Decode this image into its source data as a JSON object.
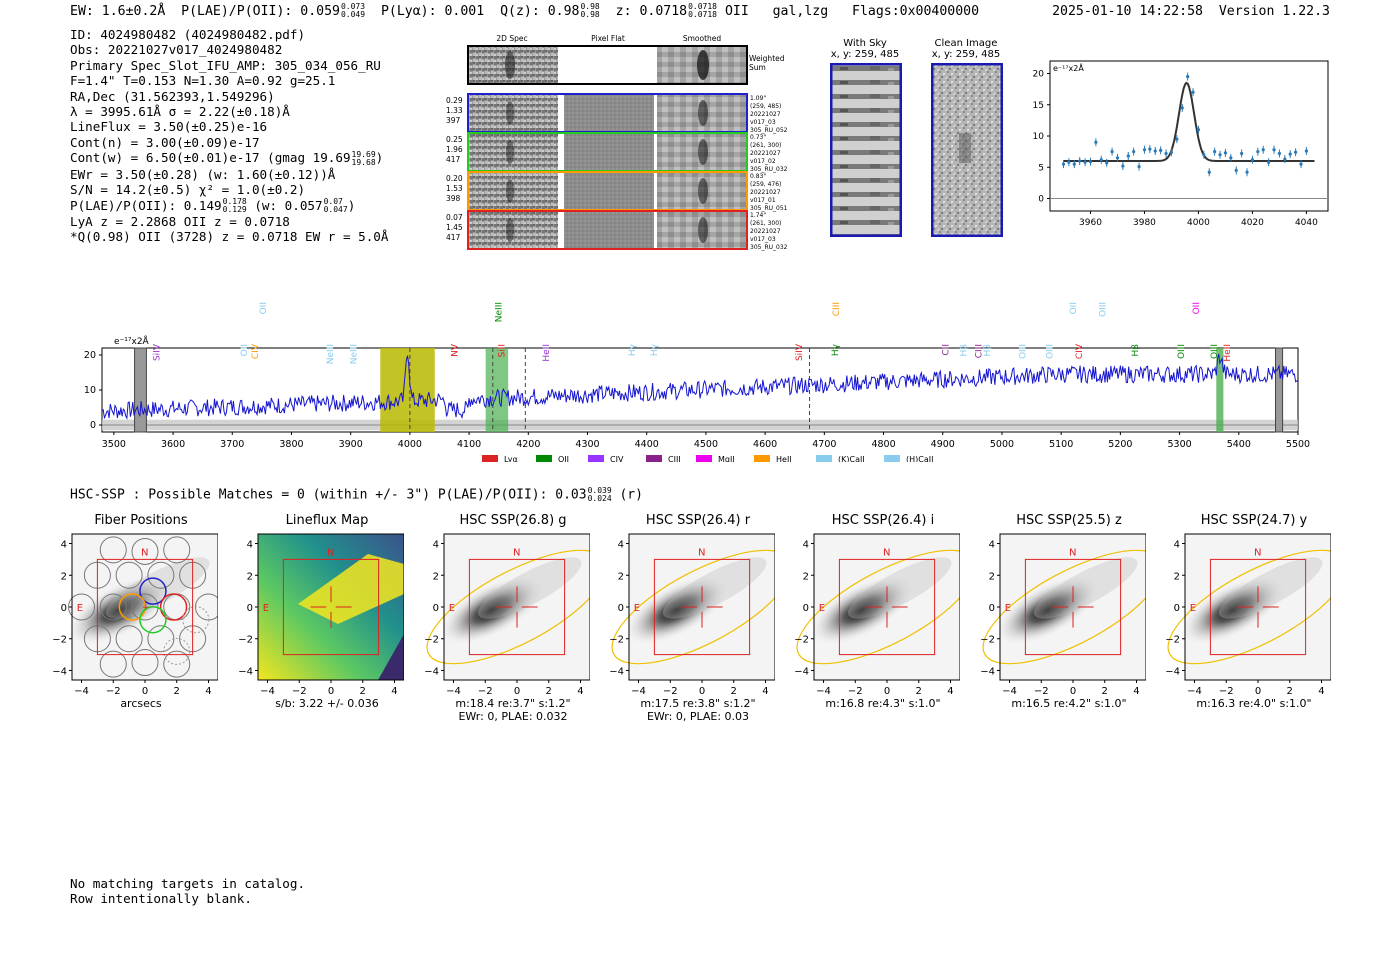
{
  "header": {
    "ew_label": "EW: 1.6±0.2Å",
    "plae_label": "P(LAE)/P(OII): 0.059",
    "plae_hi": "0.073",
    "plae_lo": "0.049",
    "plya": "P(Lyα): 0.001",
    "qz_label": "Q(z): 0.98",
    "qz_hi": "0.98",
    "qz_lo": "0.98",
    "z_label": "z: 0.0718",
    "z_hi": "0.0718",
    "z_lo": "0.0718",
    "z_tail": "OII",
    "classification": "gal,lzg",
    "flags": "Flags:0x00400000",
    "timestamp": "2025-01-10 14:22:58",
    "version": "Version 1.22.3"
  },
  "info": {
    "id": "ID: 4024980482 (4024980482.pdf)",
    "obs": "Obs: 20221027v017_4024980482",
    "primary": "Primary Spec_Slot_IFU_AMP: 305_034_056_RU",
    "params": "F=1.4\"  T=0.153  N=1.30  A=0.92  g=25.1",
    "radec": "RA,Dec (31.562393,1.549296)",
    "lambda": "λ = 3995.61Å  σ = 2.22(±0.18)Å",
    "lineflux": "LineFlux = 3.50(±0.25)e-16",
    "contn": "Cont(n) = 3.00(±0.09)e-17",
    "contw": "Cont(w) = 6.50(±0.01)e-17 (gmag 19.69",
    "gmag_hi": "19.69",
    "gmag_lo": "19.68",
    "ewr": "EWr = 3.50(±0.28) (w: 1.60(±0.12))Å",
    "sn": "S/N = 14.2(±0.5)  χ² = 1.0(±0.2)",
    "plae2": "P(LAE)/P(OII): 0.149",
    "plae2_hi": "0.178",
    "plae2_lo": "0.129",
    "plae2_w": "(w: 0.057",
    "plae2_w_hi": "0.07",
    "plae2_w_lo": "0.047",
    "lya": "LyA z = 2.2868  OII z = 0.0718",
    "qline": "*Q(0.98) OII (3728) z = 0.0718  EW r = 5.0Å"
  },
  "cutouts": {
    "headers": [
      "2D Spec",
      "Pixel Flat",
      "Smoothed"
    ],
    "weighted": [
      "Weighted",
      "Sum"
    ],
    "rows": [
      {
        "left": [
          "0.29",
          "1.33",
          "397"
        ],
        "right": [
          "1.09\"",
          "(259, 485)",
          "20221027",
          "v017_03",
          "305_RU_052"
        ],
        "color": "#2020cc"
      },
      {
        "left": [
          "0.25",
          "1.96",
          "417"
        ],
        "right": [
          "0.73\"",
          "(261, 300)",
          "20221027",
          "v017_02",
          "305_RU_032"
        ],
        "color": "#22cc22"
      },
      {
        "left": [
          "0.20",
          "1.53",
          "398"
        ],
        "right": [
          "0.83\"",
          "(259, 476)",
          "20221027",
          "v017_01",
          "305_RU_051"
        ],
        "color": "#ff9900"
      },
      {
        "left": [
          "0.07",
          "1.45",
          "417"
        ],
        "right": [
          "1.74\"",
          "(261, 300)",
          "20221027",
          "v017_03",
          "305_RU_032"
        ],
        "color": "#dd2222"
      }
    ]
  },
  "sky": {
    "with_sky": "With Sky",
    "with_sky_xy": "x, y: 259, 485",
    "clean": "Clean Image",
    "clean_xy": "x, y: 259, 485"
  },
  "fit": {
    "unit": "e⁻¹⁷x2Å",
    "xticks": [
      "3960",
      "3980",
      "4000",
      "4020",
      "4040"
    ],
    "yticks": [
      "0",
      "5",
      "10",
      "15",
      "20"
    ]
  },
  "spectrum": {
    "unit": "e⁻¹⁷x2Å",
    "xticks": [
      "3500",
      "3600",
      "3700",
      "3800",
      "3900",
      "4000",
      "4100",
      "4200",
      "4300",
      "4400",
      "4500",
      "4600",
      "4700",
      "4800",
      "4900",
      "5000",
      "5100",
      "5200",
      "5300",
      "5400",
      "5500"
    ],
    "yticks": [
      "0",
      "10",
      "20"
    ],
    "lines": [
      {
        "name": "SiIV",
        "color": "#9933cc",
        "x": 3572,
        "row": 1
      },
      {
        "name": "OII",
        "color": "#88ccee",
        "x": 3720,
        "row": 1
      },
      {
        "name": "CIV",
        "color": "#ff9900",
        "x": 3738,
        "row": 1
      },
      {
        "name": "OII",
        "color": "#88ccee",
        "x": 3752,
        "row": 2
      },
      {
        "name": "NeIII",
        "color": "#88ccee",
        "x": 3865,
        "row": 1
      },
      {
        "name": "NeIII",
        "color": "#88ccee",
        "x": 3905,
        "row": 1
      },
      {
        "name": "NV",
        "color": "#dd2222",
        "x": 4075,
        "row": 1
      },
      {
        "name": "NeIII",
        "color": "#008800",
        "x": 4150,
        "row": 3
      },
      {
        "name": "SiII",
        "color": "#dd2222",
        "x": 4155,
        "row": 1
      },
      {
        "name": "HeII",
        "color": "#9933cc",
        "x": 4230,
        "row": 1
      },
      {
        "name": "Hγ",
        "color": "#88ccee",
        "x": 4375,
        "row": 1
      },
      {
        "name": "Hγ",
        "color": "#88ccee",
        "x": 4412,
        "row": 1
      },
      {
        "name": "SiIV",
        "color": "#dd2222",
        "x": 4657,
        "row": 1
      },
      {
        "name": "CIII",
        "color": "#ff9900",
        "x": 4720,
        "row": 2
      },
      {
        "name": "Hγ",
        "color": "#008800",
        "x": 4718,
        "row": 1
      },
      {
        "name": "CII",
        "color": "#882288",
        "x": 4905,
        "row": 1
      },
      {
        "name": "Hβ",
        "color": "#88ccee",
        "x": 4935,
        "row": 1
      },
      {
        "name": "CIII",
        "color": "#882288",
        "x": 4960,
        "row": 1
      },
      {
        "name": "Hβ",
        "color": "#88ccee",
        "x": 4975,
        "row": 1
      },
      {
        "name": "OIII",
        "color": "#88ccee",
        "x": 5035,
        "row": 1
      },
      {
        "name": "OIII",
        "color": "#88ccee",
        "x": 5080,
        "row": 1
      },
      {
        "name": "OII",
        "color": "#88ccee",
        "x": 5120,
        "row": 2
      },
      {
        "name": "CIV",
        "color": "#dd2222",
        "x": 5130,
        "row": 1
      },
      {
        "name": "OIII",
        "color": "#88ccee",
        "x": 5170,
        "row": 2
      },
      {
        "name": "Hβ",
        "color": "#008800",
        "x": 5225,
        "row": 1
      },
      {
        "name": "OIII",
        "color": "#008800",
        "x": 5302,
        "row": 1
      },
      {
        "name": "OII",
        "color": "#ee00ee",
        "x": 5328,
        "row": 2
      },
      {
        "name": "OIII",
        "color": "#008800",
        "x": 5358,
        "row": 1
      },
      {
        "name": "HeII",
        "color": "#dd2222",
        "x": 5380,
        "row": 1
      }
    ],
    "legend": [
      {
        "label": "Lyα",
        "color": "#dd2222"
      },
      {
        "label": "OII",
        "color": "#008800"
      },
      {
        "label": "CIV",
        "color": "#9933ff"
      },
      {
        "label": "CIII",
        "color": "#882288"
      },
      {
        "label": "MgII",
        "color": "#ee00ee"
      },
      {
        "label": "HeII",
        "color": "#ff9900"
      },
      {
        "label": "(K)CaII",
        "color": "#88ccee"
      },
      {
        "label": "(H)CaII",
        "color": "#88ccee"
      }
    ]
  },
  "hsc": {
    "title": "HSC-SSP : Possible Matches = 0 (within +/- 3\")  P(LAE)/P(OII): 0.03",
    "plae_hi": "0.039",
    "plae_lo": "0.024",
    "band_tag": "(r)",
    "panels": [
      {
        "title": "Fiber Positions",
        "sub": [
          "arcsecs"
        ],
        "kind": "fiber"
      },
      {
        "title": "Lineflux Map",
        "sub": [
          "s/b: 3.22 +/- 0.036"
        ],
        "kind": "map"
      },
      {
        "title": "HSC SSP(26.8) g",
        "sub": [
          "m:18.4  re:3.7\"  s:1.2\"",
          "EWr: 0, PLAE: 0.032"
        ],
        "kind": "galaxy"
      },
      {
        "title": "HSC SSP(26.4) r",
        "sub": [
          "m:17.5  re:3.8\"  s:1.2\"",
          "EWr: 0, PLAE: 0.03"
        ],
        "kind": "galaxy"
      },
      {
        "title": "HSC SSP(26.4) i",
        "sub": [
          "m:16.8  re:4.3\"  s:1.0\""
        ],
        "kind": "galaxy"
      },
      {
        "title": "HSC SSP(25.5) z",
        "sub": [
          "m:16.5  re:4.2\"  s:1.0\""
        ],
        "kind": "galaxy"
      },
      {
        "title": "HSC SSP(24.7) y",
        "sub": [
          "m:16.3  re:4.0\"  s:1.0\""
        ],
        "kind": "galaxy"
      }
    ],
    "axis_ticks_x": [
      "−4",
      "−2",
      "0",
      "2",
      "4"
    ],
    "axis_ticks_y": [
      "4",
      "2",
      "0",
      "−2",
      "−4"
    ],
    "compass_n": "N",
    "compass_e": "E"
  },
  "footer": {
    "line1": "No matching targets in catalog.",
    "line2": "Row intentionally blank."
  }
}
